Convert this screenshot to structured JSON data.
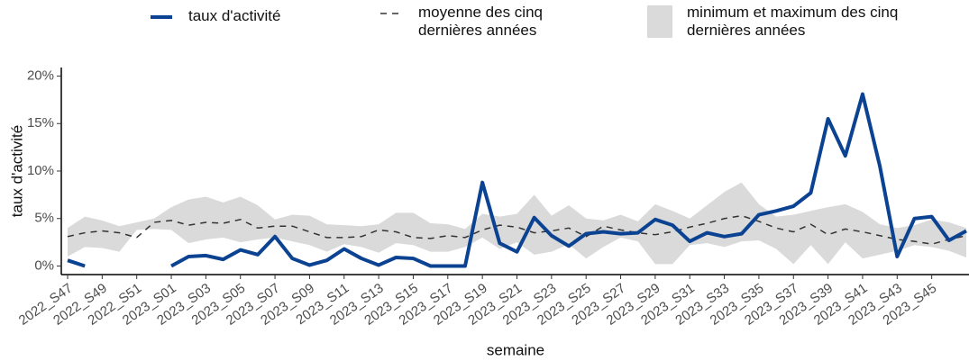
{
  "chart_data": {
    "type": "line",
    "x_label": "semaine",
    "y_label": "taux d'activité",
    "categories": [
      "2022_S47",
      null,
      "2022_S49",
      null,
      "2022_S51",
      null,
      "2023_S01",
      null,
      "2023_S03",
      null,
      "2023_S05",
      null,
      "2023_S07",
      null,
      "2023_S09",
      null,
      "2023_S11",
      null,
      "2023_S13",
      null,
      "2023_S15",
      null,
      "2023_S17",
      null,
      "2023_S19",
      null,
      "2023_S21",
      null,
      "2023_S23",
      null,
      "2023_S25",
      null,
      "2023_S27",
      null,
      "2023_S29",
      null,
      "2023_S31",
      null,
      "2023_S33",
      null,
      "2023_S35",
      null,
      "2023_S37",
      null,
      "2023_S39",
      null,
      "2023_S41",
      null,
      "2023_S43",
      null,
      "2023_S45",
      null,
      null
    ],
    "ylim": [
      -0.9,
      20.9
    ],
    "yticks": [
      {
        "value": 0,
        "label": "0%"
      },
      {
        "value": 5,
        "label": "5%"
      },
      {
        "value": 10,
        "label": "10%"
      },
      {
        "value": 15,
        "label": "15%"
      },
      {
        "value": 20,
        "label": "20%"
      }
    ],
    "series": [
      {
        "name": "taux d'activité",
        "color": "#0b4392",
        "values": [
          0.6,
          0,
          null,
          null,
          null,
          null,
          0,
          1.0,
          1.1,
          0.7,
          1.7,
          1.2,
          3.1,
          0.8,
          0.1,
          0.6,
          1.8,
          0.8,
          0.1,
          0.9,
          0.8,
          0,
          0,
          0,
          8.8,
          2.4,
          1.5,
          5.1,
          3.2,
          2.1,
          3.4,
          3.6,
          3.4,
          3.5,
          4.9,
          4.3,
          2.6,
          3.5,
          3.1,
          3.4,
          5.4,
          5.8,
          6.3,
          7.7,
          15.5,
          11.6,
          18.1,
          10.5,
          1.0,
          5.0,
          5.2,
          2.7,
          3.7
        ]
      },
      {
        "name": "moyenne des cinq dernières années",
        "color": "#333333",
        "dashed": true,
        "values": [
          3.1,
          3.5,
          3.7,
          3.5,
          3.0,
          4.6,
          4.8,
          4.3,
          4.6,
          4.5,
          4.9,
          4.0,
          4.2,
          4.2,
          3.6,
          3.0,
          3.0,
          3.1,
          3.8,
          3.6,
          3.0,
          2.9,
          3.2,
          3.0,
          3.8,
          4.3,
          4.1,
          3.5,
          3.7,
          4.0,
          3.1,
          4.2,
          3.8,
          3.5,
          3.3,
          3.6,
          4.1,
          4.5,
          5.0,
          5.3,
          4.7,
          4.0,
          3.6,
          4.4,
          3.3,
          3.9,
          3.6,
          3.2,
          2.8,
          2.6,
          2.3,
          2.8,
          3.2
        ]
      },
      {
        "name": "minimum et maximum des cinq dernières années",
        "color": "#dadada",
        "band": true,
        "max": [
          4.0,
          5.2,
          4.8,
          4.2,
          4.6,
          5.0,
          6.2,
          7.0,
          7.3,
          6.7,
          7.3,
          6.4,
          4.9,
          5.4,
          5.3,
          4.4,
          4.3,
          4.2,
          4.4,
          5.6,
          5.6,
          4.5,
          4.4,
          3.9,
          5.5,
          5.2,
          5.5,
          7.5,
          5.3,
          6.4,
          5.0,
          4.8,
          5.4,
          4.7,
          6.5,
          5.8,
          5.0,
          6.4,
          7.8,
          8.8,
          6.5,
          5.2,
          5.4,
          5.8,
          6.2,
          6.5,
          5.7,
          4.4,
          4.0,
          4.3,
          4.9,
          4.6,
          4.0
        ],
        "min": [
          1.0,
          2.0,
          1.9,
          1.5,
          3.8,
          3.9,
          3.8,
          2.4,
          2.8,
          3.0,
          2.5,
          2.8,
          3.0,
          2.6,
          2.2,
          1.5,
          2.3,
          2.0,
          1.4,
          2.4,
          2.2,
          1.5,
          1.5,
          2.0,
          3.0,
          1.8,
          2.5,
          1.2,
          1.5,
          2.3,
          0.8,
          2.0,
          3.0,
          2.6,
          0.2,
          0.2,
          2.2,
          2.4,
          2.0,
          2.6,
          2.7,
          1.8,
          0.2,
          2.2,
          0.2,
          2.5,
          0.8,
          1.2,
          1.6,
          2.2,
          2.0,
          1.6,
          0.9
        ]
      }
    ]
  }
}
